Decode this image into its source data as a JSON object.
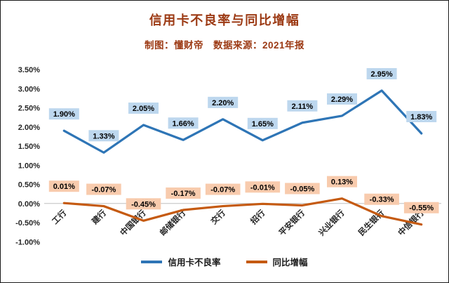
{
  "chart_data": {
    "type": "line",
    "title": "信用卡不良率与同比增幅",
    "subtitle": "制图：懂财帝　数据来源：2021年报",
    "title_color": "#9C3A14",
    "background": "#FFFFFF",
    "categories": [
      "工行",
      "建行",
      "中国银行",
      "邮储银行",
      "交行",
      "招行",
      "平安银行",
      "兴业银行",
      "民生银行",
      "中信银行"
    ],
    "series": [
      {
        "name": "信用卡不良率",
        "color": "#2E75B6",
        "label_background": "#BDD7EE",
        "values": [
          1.9,
          1.33,
          2.05,
          1.66,
          2.2,
          1.65,
          2.11,
          2.29,
          2.95,
          1.83
        ],
        "labels": [
          "1.90%",
          "1.33%",
          "2.05%",
          "1.66%",
          "2.20%",
          "1.65%",
          "2.11%",
          "2.29%",
          "2.95%",
          "1.83%"
        ]
      },
      {
        "name": "同比增幅",
        "color": "#C55A11",
        "label_background": "#F8CBAD",
        "values": [
          0.01,
          -0.07,
          -0.45,
          -0.17,
          -0.07,
          -0.01,
          -0.05,
          0.13,
          -0.33,
          -0.55
        ],
        "labels": [
          "0.01%",
          "-0.07%",
          "-0.45%",
          "-0.17%",
          "-0.07%",
          "-0.01%",
          "-0.05%",
          "0.13%",
          "-0.33%",
          "-0.55%"
        ]
      }
    ],
    "y_axis": {
      "min": -1.0,
      "max": 3.5,
      "step": 0.5,
      "ticks": [
        "3.50%",
        "3.00%",
        "2.50%",
        "2.00%",
        "1.50%",
        "1.00%",
        "0.50%",
        "0.00%",
        "-0.50%",
        "-1.00%"
      ]
    },
    "grid": false,
    "zero_line_color": "#BFBFBF",
    "legend_position": "bottom",
    "x_label_rotation": -45
  }
}
